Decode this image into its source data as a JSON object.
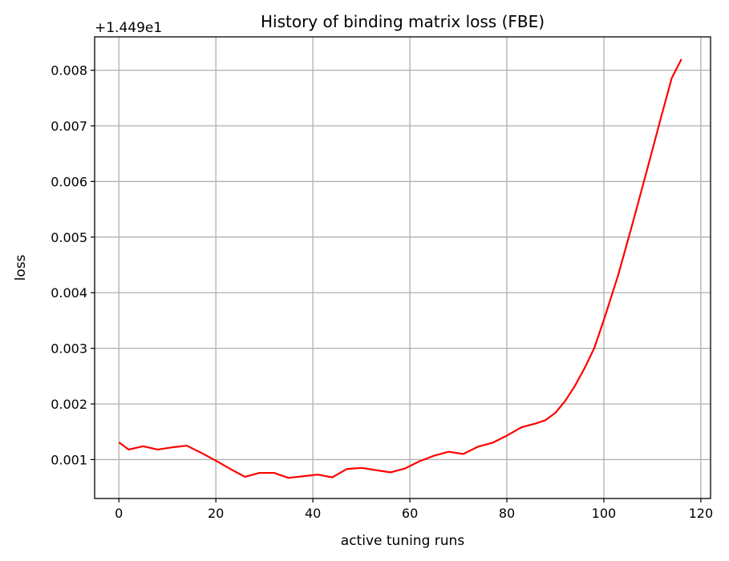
{
  "chart_data": {
    "type": "line",
    "title": "History of binding matrix loss (FBE)",
    "xlabel": "active tuning runs",
    "ylabel": "loss",
    "offset_text": "+1.449e1",
    "xlim": [
      -5,
      122
    ],
    "ylim": [
      0.0003,
      0.0086
    ],
    "x_ticks": [
      0,
      20,
      40,
      60,
      80,
      100,
      120
    ],
    "x_tick_labels": [
      "0",
      "20",
      "40",
      "60",
      "80",
      "100",
      "120"
    ],
    "y_ticks": [
      0.001,
      0.002,
      0.003,
      0.004,
      0.005,
      0.006,
      0.007,
      0.008
    ],
    "y_tick_labels": [
      "0.001",
      "0.002",
      "0.003",
      "0.004",
      "0.005",
      "0.006",
      "0.007",
      "0.008"
    ],
    "grid": true,
    "line_color": "#ff0000",
    "series": [
      {
        "x": [
          0,
          2,
          5,
          8,
          11,
          14,
          17,
          20,
          23,
          26,
          29,
          32,
          35,
          38,
          41,
          44,
          47,
          50,
          53,
          56,
          59,
          62,
          65,
          68,
          71,
          74,
          77,
          80,
          83,
          86,
          88,
          90,
          92,
          94,
          96,
          98,
          100,
          103,
          106,
          109,
          112,
          114,
          116
        ],
        "y": [
          0.00131,
          0.00118,
          0.00124,
          0.00118,
          0.00122,
          0.00125,
          0.00112,
          0.00098,
          0.00083,
          0.00069,
          0.00076,
          0.00076,
          0.00067,
          0.0007,
          0.00073,
          0.00068,
          0.00083,
          0.00085,
          0.00081,
          0.00077,
          0.00084,
          0.00097,
          0.00107,
          0.00114,
          0.0011,
          0.00123,
          0.0013,
          0.00143,
          0.00158,
          0.00165,
          0.00171,
          0.00184,
          0.00205,
          0.00232,
          0.00264,
          0.003,
          0.00351,
          0.00433,
          0.00527,
          0.00624,
          0.00722,
          0.00786,
          0.0082
        ]
      }
    ]
  }
}
